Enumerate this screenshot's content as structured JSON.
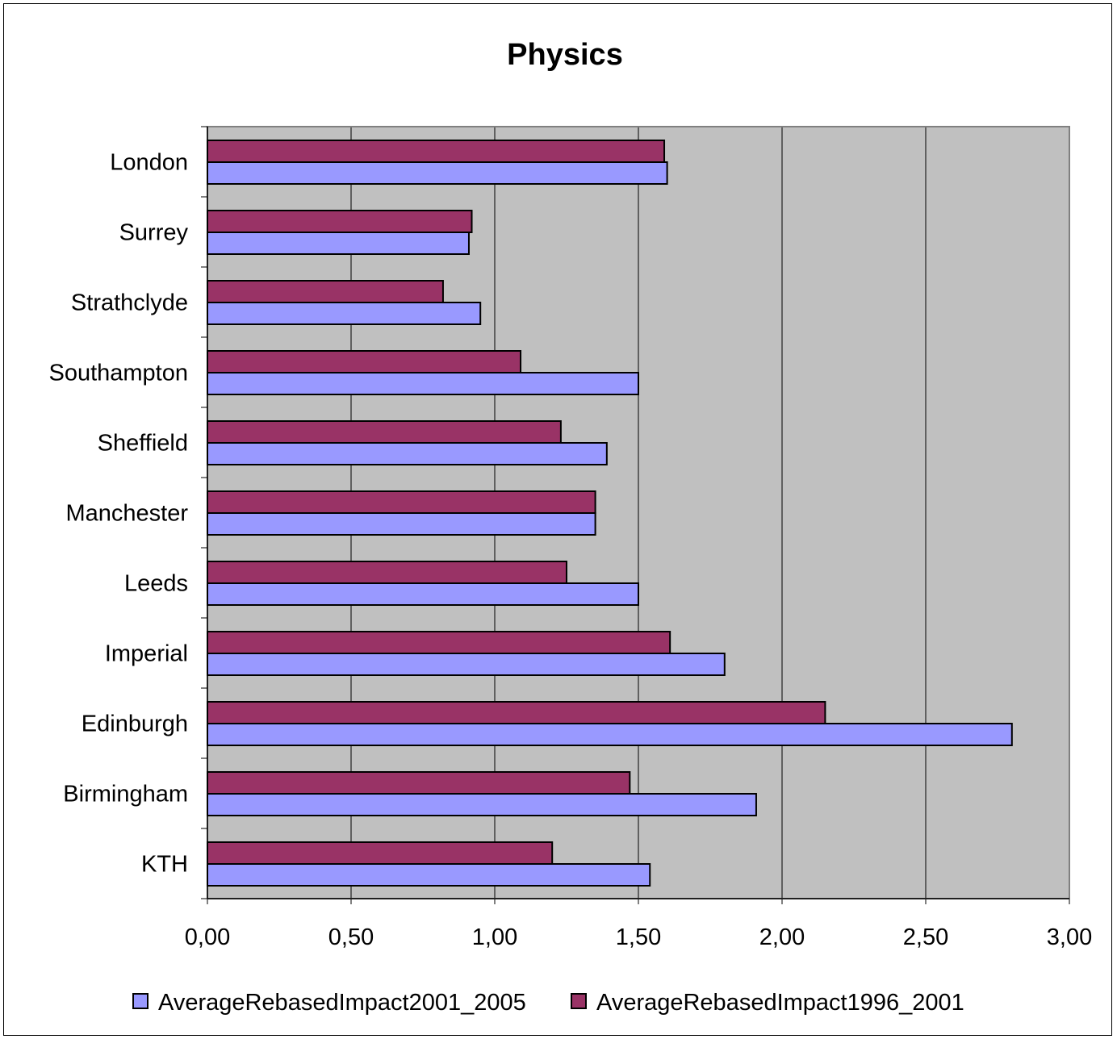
{
  "chart_data": {
    "type": "bar",
    "orientation": "horizontal",
    "title": "Physics",
    "categories": [
      "London",
      "Surrey",
      "Strathclyde",
      "Southampton",
      "Sheffield",
      "Manchester",
      "Leeds",
      "Imperial",
      "Edinburgh",
      "Birmingham",
      "KTH"
    ],
    "series": [
      {
        "name": "AverageRebasedImpact2001_2005",
        "color": "#9999ff",
        "values": [
          1.6,
          0.91,
          0.95,
          1.5,
          1.39,
          1.35,
          1.5,
          1.8,
          2.8,
          1.91,
          1.54
        ]
      },
      {
        "name": "AverageRebasedImpact1996_2001",
        "color": "#993366",
        "values": [
          1.59,
          0.92,
          0.82,
          1.09,
          1.23,
          1.35,
          1.25,
          1.61,
          2.15,
          1.47,
          1.2
        ]
      }
    ],
    "xlim": [
      0,
      3
    ],
    "xticks": [
      "0,00",
      "0,50",
      "1,00",
      "1,50",
      "2,00",
      "2,50",
      "3,00"
    ],
    "plot_background": "#c0c0c0",
    "grid": true,
    "legend_position": "bottom"
  }
}
